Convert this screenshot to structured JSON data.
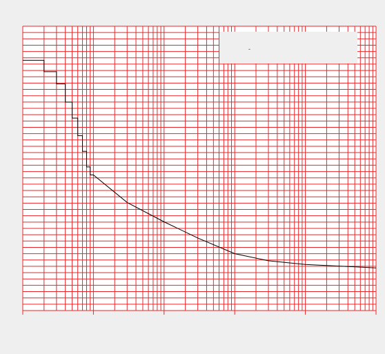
{
  "colors": {
    "page_background": "#efefef",
    "plot_background": "#ffffff",
    "grid": "#e8262a",
    "series_line": "#000000",
    "legend_background": "#efefef"
  },
  "chart_data": {
    "type": "line",
    "title": "",
    "xlabel": "",
    "ylabel": "",
    "x_scale": "log",
    "x_decades": [
      1,
      100000
    ],
    "x_major_ticks": [
      1,
      10,
      100,
      1000,
      10000,
      100000
    ],
    "x_tick_labels": [],
    "y_scale": "linear",
    "ylim": [
      0,
      1
    ],
    "y_grid_divisions": 45,
    "y_tick_labels": [],
    "grid": true,
    "legend": {
      "placement": "top-right",
      "entries": [
        {
          "text": "-"
        }
      ]
    },
    "series": [
      {
        "step_points": [
          {
            "x": 1.0,
            "y": 0.88
          },
          {
            "x": 2.0,
            "y": 0.88
          },
          {
            "x": 2.0,
            "y": 0.84
          },
          {
            "x": 3.0,
            "y": 0.84
          },
          {
            "x": 3.0,
            "y": 0.797
          },
          {
            "x": 4.0,
            "y": 0.797
          },
          {
            "x": 4.0,
            "y": 0.733
          },
          {
            "x": 5.0,
            "y": 0.733
          },
          {
            "x": 5.0,
            "y": 0.677
          },
          {
            "x": 6.0,
            "y": 0.677
          },
          {
            "x": 6.0,
            "y": 0.615
          },
          {
            "x": 7.0,
            "y": 0.615
          },
          {
            "x": 7.0,
            "y": 0.56
          },
          {
            "x": 8.0,
            "y": 0.56
          },
          {
            "x": 8.0,
            "y": 0.505
          },
          {
            "x": 9.0,
            "y": 0.505
          },
          {
            "x": 9.0,
            "y": 0.477
          },
          {
            "x": 10.0,
            "y": 0.477
          },
          {
            "x": 10.0,
            "y": 0.477
          }
        ],
        "curve_points": [
          {
            "x": 10,
            "y": 0.477
          },
          {
            "x": 30,
            "y": 0.38
          },
          {
            "x": 100,
            "y": 0.312
          },
          {
            "x": 300,
            "y": 0.255
          },
          {
            "x": 1000,
            "y": 0.2
          },
          {
            "x": 3000,
            "y": 0.175
          },
          {
            "x": 10000,
            "y": 0.162
          },
          {
            "x": 100000,
            "y": 0.15
          }
        ]
      }
    ]
  }
}
